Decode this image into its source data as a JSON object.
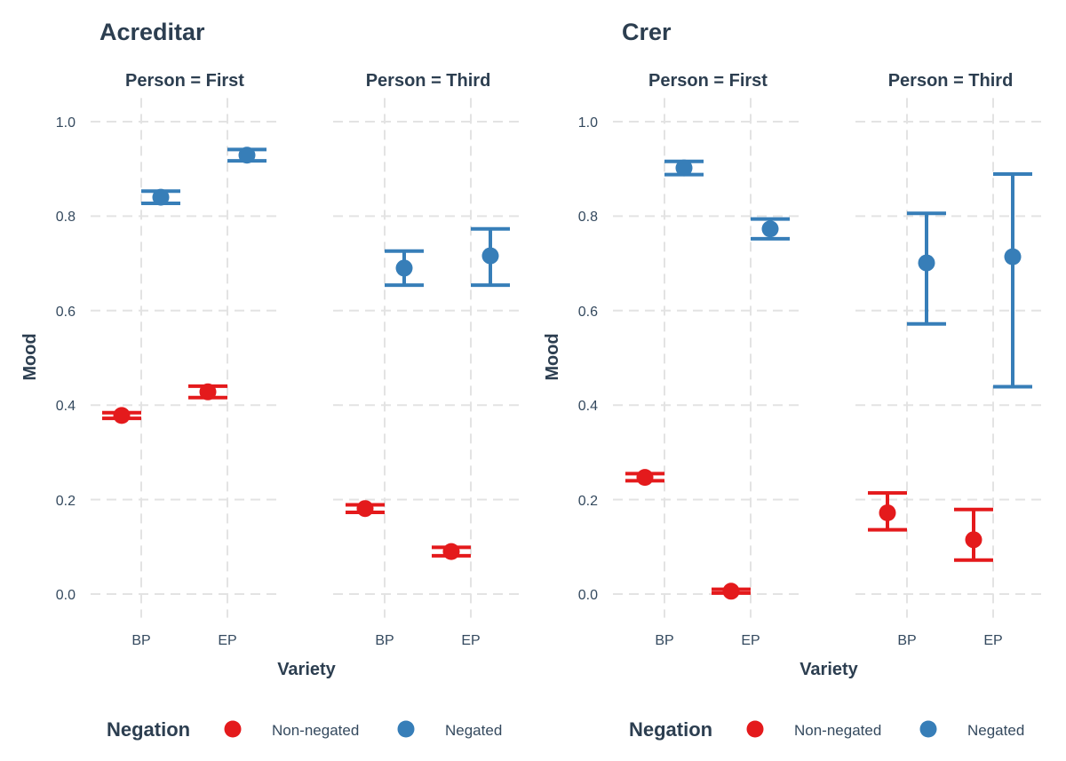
{
  "chart_data": [
    {
      "type": "scatter",
      "title": "Acreditar",
      "xlabel": "Variety",
      "ylabel": "Mood",
      "ylim": [
        -0.05,
        1.05
      ],
      "yticks": [
        "0.0",
        "0.2",
        "0.4",
        "0.6",
        "0.8",
        "1.0"
      ],
      "categories": [
        "BP",
        "EP"
      ],
      "grid": true,
      "error_bars": true,
      "facets": [
        {
          "label": "Person = First",
          "series": [
            {
              "name": "Non-negated",
              "values": [
                0.378,
                0.428
              ],
              "lower": [
                0.372,
                0.416
              ],
              "upper": [
                0.384,
                0.44
              ]
            },
            {
              "name": "Negated",
              "values": [
                0.84,
                0.929
              ],
              "lower": [
                0.827,
                0.917
              ],
              "upper": [
                0.853,
                0.941
              ]
            }
          ]
        },
        {
          "label": "Person = Third",
          "series": [
            {
              "name": "Non-negated",
              "values": [
                0.181,
                0.09
              ],
              "lower": [
                0.173,
                0.081
              ],
              "upper": [
                0.189,
                0.099
              ]
            },
            {
              "name": "Negated",
              "values": [
                0.69,
                0.716
              ],
              "lower": [
                0.654,
                0.654
              ],
              "upper": [
                0.726,
                0.773
              ]
            }
          ]
        }
      ]
    },
    {
      "type": "scatter",
      "title": "Crer",
      "xlabel": "Variety",
      "ylabel": "Mood",
      "ylim": [
        -0.05,
        1.05
      ],
      "yticks": [
        "0.0",
        "0.2",
        "0.4",
        "0.6",
        "0.8",
        "1.0"
      ],
      "categories": [
        "BP",
        "EP"
      ],
      "grid": true,
      "error_bars": true,
      "facets": [
        {
          "label": "Person = First",
          "series": [
            {
              "name": "Non-negated",
              "values": [
                0.247,
                0.006
              ],
              "lower": [
                0.24,
                0.002
              ],
              "upper": [
                0.255,
                0.01
              ]
            },
            {
              "name": "Negated",
              "values": [
                0.902,
                0.773
              ],
              "lower": [
                0.888,
                0.752
              ],
              "upper": [
                0.916,
                0.794
              ]
            }
          ]
        },
        {
          "label": "Person = Third",
          "series": [
            {
              "name": "Non-negated",
              "values": [
                0.172,
                0.115
              ],
              "lower": [
                0.136,
                0.072
              ],
              "upper": [
                0.214,
                0.179
              ]
            },
            {
              "name": "Negated",
              "values": [
                0.701,
                0.714
              ],
              "lower": [
                0.572,
                0.439
              ],
              "upper": [
                0.806,
                0.889
              ]
            }
          ]
        }
      ]
    }
  ],
  "legend": {
    "title": "Negation",
    "position": "bottom",
    "items": [
      {
        "label": "Non-negated",
        "color": "#e41a1c"
      },
      {
        "label": "Negated",
        "color": "#377eb8"
      }
    ]
  },
  "colors": {
    "Non-negated": "#e41a1c",
    "Negated": "#377eb8",
    "text": "#2c3e50",
    "grid": "#e3e3e3"
  }
}
